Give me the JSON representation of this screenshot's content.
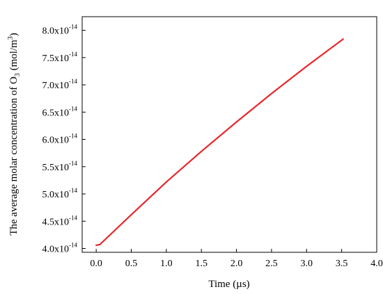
{
  "chart_data": {
    "type": "line",
    "title": "",
    "xlabel": "Time (µs)",
    "ylabel": {
      "prefix": "The average molar concentration of O",
      "sub": "3",
      "mid": " (mol/m",
      "sup": "3",
      "suffix": ")"
    },
    "xlim": [
      -0.2,
      4.0
    ],
    "ylim": [
      3.93,
      8.25
    ],
    "y_scale_exponent": "-14",
    "x_ticks": [
      "0.0",
      "0.5",
      "1.0",
      "1.5",
      "2.0",
      "2.5",
      "3.0",
      "3.5",
      "4.0"
    ],
    "x_tick_values": [
      0.0,
      0.5,
      1.0,
      1.5,
      2.0,
      2.5,
      3.0,
      3.5,
      4.0
    ],
    "y_ticks": [
      "4.0x10",
      "4.5x10",
      "5.0x10",
      "5.5x10",
      "6.0x10",
      "6.5x10",
      "7.0x10",
      "7.5x10",
      "8.0x10"
    ],
    "y_tick_values": [
      4.0,
      4.5,
      5.0,
      5.5,
      6.0,
      6.5,
      7.0,
      7.5,
      8.0
    ],
    "grid": false,
    "legend": "none",
    "series": [
      {
        "color": "#e8262a",
        "x": [
          0.0,
          0.05,
          0.5,
          1.0,
          1.5,
          2.0,
          2.5,
          3.0,
          3.52
        ],
        "y": [
          4.06,
          4.07,
          4.62,
          5.22,
          5.78,
          6.32,
          6.84,
          7.34,
          7.84
        ]
      }
    ]
  }
}
